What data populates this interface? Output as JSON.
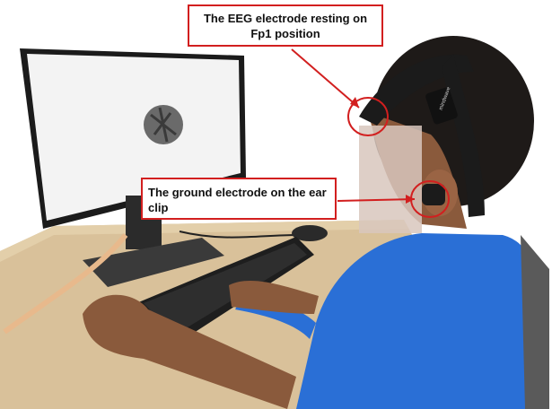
{
  "annotations": {
    "eeg_electrode": "The EEG electrode resting on Fp1 position",
    "ground_electrode": "The ground electrode on the ear clip"
  },
  "headset_text": "mindwave",
  "colors": {
    "annotation_red": "#d21f1f",
    "shirt_blue": "#2a6fd6",
    "desk_wood": "#d9c19a"
  }
}
